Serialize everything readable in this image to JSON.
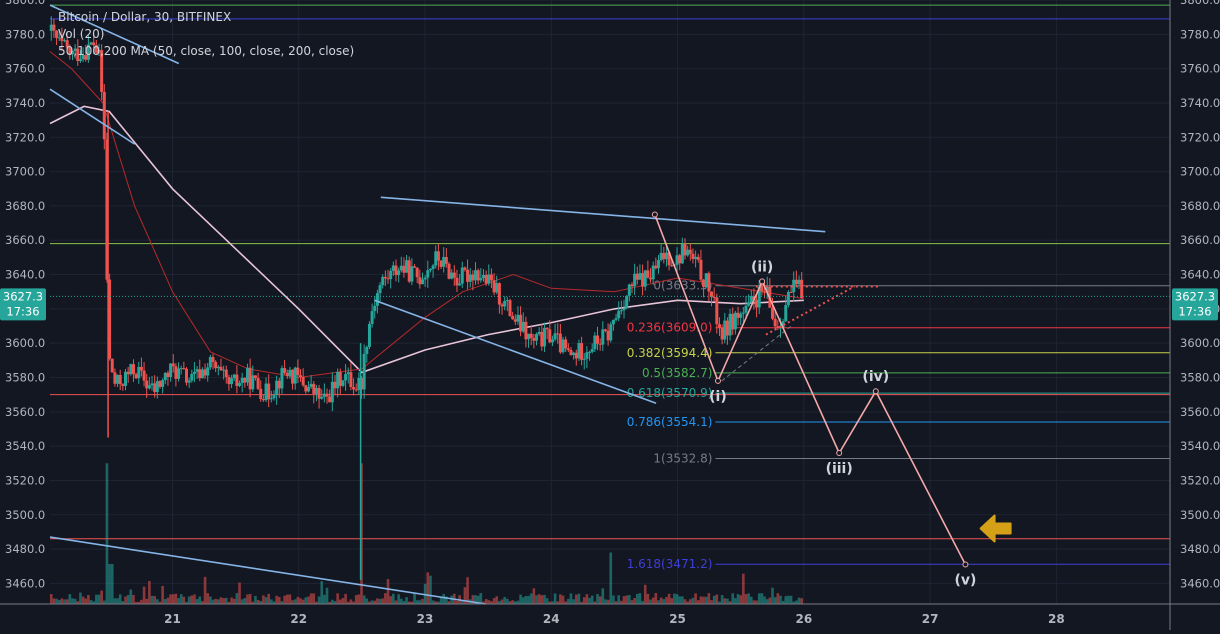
{
  "legend": {
    "title": "Bitcoin / Dollar, 30, BITFINEX",
    "volume": "Vol (20)",
    "ma": "50,100,200 MA (50, close, 100, close, 200, close)"
  },
  "chart_data": {
    "type": "candlestick",
    "symbol": "Bitcoin / Dollar",
    "interval": "30",
    "exchange": "BITFINEX",
    "x_ticks": [
      "21",
      "22",
      "23",
      "24",
      "25",
      "26",
      "27",
      "28"
    ],
    "y_ticks": [
      3460.0,
      3480.0,
      3500.0,
      3520.0,
      3540.0,
      3560.0,
      3580.0,
      3600.0,
      3620.0,
      3640.0,
      3660.0,
      3680.0,
      3700.0,
      3720.0,
      3740.0,
      3760.0,
      3780.0,
      3800.0
    ],
    "ylim": [
      3448,
      3800
    ],
    "xlim": [
      20.03,
      28.9
    ],
    "last_price": "3627.3",
    "countdown": "17:36",
    "colors": {
      "background": "#131722",
      "up": "#26a69a",
      "down": "#ef5350",
      "trendline": "#85b4e6",
      "wave": "#f4a8a8",
      "ma_slow": "#e8c4d8",
      "ma_mid": "#b72a2a",
      "last_price": "#26a69a"
    },
    "price_path": [
      [
        20.03,
        3782
      ],
      [
        20.1,
        3775
      ],
      [
        20.2,
        3768
      ],
      [
        20.3,
        3770
      ],
      [
        20.38,
        3775
      ],
      [
        20.42,
        3765
      ],
      [
        20.45,
        3735
      ],
      [
        20.46,
        3718
      ],
      [
        20.48,
        3640
      ],
      [
        20.5,
        3590
      ],
      [
        20.55,
        3575
      ],
      [
        20.7,
        3585
      ],
      [
        20.85,
        3572
      ],
      [
        21.0,
        3585
      ],
      [
        21.15,
        3578
      ],
      [
        21.3,
        3588
      ],
      [
        21.45,
        3575
      ],
      [
        21.6,
        3580
      ],
      [
        21.75,
        3570
      ],
      [
        21.9,
        3584
      ],
      [
        22.05,
        3576
      ],
      [
        22.2,
        3566
      ],
      [
        22.35,
        3582
      ],
      [
        22.45,
        3575
      ],
      [
        22.5,
        3578
      ],
      [
        22.53,
        3600
      ],
      [
        22.58,
        3620
      ],
      [
        22.65,
        3635
      ],
      [
        22.8,
        3645
      ],
      [
        22.95,
        3638
      ],
      [
        23.1,
        3650
      ],
      [
        23.25,
        3637
      ],
      [
        23.4,
        3642
      ],
      [
        23.55,
        3632
      ],
      [
        23.7,
        3615
      ],
      [
        23.85,
        3600
      ],
      [
        24.0,
        3605
      ],
      [
        24.15,
        3592
      ],
      [
        24.3,
        3598
      ],
      [
        24.45,
        3605
      ],
      [
        24.55,
        3622
      ],
      [
        24.65,
        3635
      ],
      [
        24.8,
        3640
      ],
      [
        24.9,
        3652
      ],
      [
        25.0,
        3648
      ],
      [
        25.05,
        3656
      ],
      [
        25.15,
        3645
      ],
      [
        25.25,
        3632
      ],
      [
        25.3,
        3618
      ],
      [
        25.35,
        3605
      ],
      [
        25.45,
        3615
      ],
      [
        25.55,
        3618
      ],
      [
        25.6,
        3625
      ],
      [
        25.7,
        3630
      ],
      [
        25.75,
        3615
      ],
      [
        25.8,
        3610
      ],
      [
        25.85,
        3622
      ],
      [
        25.9,
        3630
      ],
      [
        25.95,
        3633
      ],
      [
        26.0,
        3627
      ]
    ],
    "volume_spikes": [
      [
        20.48,
        3530
      ],
      [
        22.5,
        3530
      ],
      [
        24.47,
        3478
      ]
    ],
    "moving_averages": [
      {
        "points": [
          [
            20.03,
            3728
          ],
          [
            20.3,
            3738
          ],
          [
            20.5,
            3735
          ],
          [
            21.0,
            3690
          ],
          [
            21.5,
            3655
          ],
          [
            22.0,
            3620
          ],
          [
            22.5,
            3583
          ],
          [
            23.0,
            3596
          ],
          [
            23.5,
            3605
          ],
          [
            24.0,
            3612
          ],
          [
            24.5,
            3620
          ],
          [
            25.0,
            3625
          ],
          [
            25.5,
            3623
          ],
          [
            26.0,
            3625
          ]
        ]
      },
      {
        "points": [
          [
            20.03,
            3770
          ],
          [
            20.2,
            3760
          ],
          [
            20.45,
            3740
          ],
          [
            20.7,
            3680
          ],
          [
            21.0,
            3630
          ],
          [
            21.3,
            3595
          ],
          [
            21.6,
            3585
          ],
          [
            22.0,
            3580
          ],
          [
            22.5,
            3585
          ],
          [
            23.0,
            3615
          ],
          [
            23.3,
            3630
          ],
          [
            23.7,
            3640
          ],
          [
            24.0,
            3632
          ],
          [
            24.5,
            3630
          ],
          [
            25.0,
            3638
          ],
          [
            25.5,
            3632
          ],
          [
            26.0,
            3626
          ]
        ]
      }
    ],
    "horizontal_levels": [
      {
        "price": 3797,
        "color": "#4caf50"
      },
      {
        "price": 3789,
        "color": "#3f3fd8"
      },
      {
        "price": 3658,
        "color": "#8bc34a"
      },
      {
        "price": 3570,
        "color": "#ef5350"
      },
      {
        "price": 3486,
        "color": "#ef5350"
      }
    ],
    "fibonacci": [
      {
        "label": "0(3633.5)",
        "price": 3633.5,
        "color": "#787b86"
      },
      {
        "label": "0.236(3609.0)",
        "price": 3609.0,
        "color": "#f23645"
      },
      {
        "label": "0.382(3594.4)",
        "price": 3594.4,
        "color": "#c6d34a"
      },
      {
        "label": "0.5(3582.7)",
        "price": 3582.7,
        "color": "#4caf50"
      },
      {
        "label": "0.618(3570.9)",
        "price": 3570.9,
        "color": "#26a69a"
      },
      {
        "label": "0.786(3554.1)",
        "price": 3554.1,
        "color": "#2196f3"
      },
      {
        "label": "1(3532.8)",
        "price": 3532.8,
        "color": "#787b86"
      },
      {
        "label": "1.618(3471.2)",
        "price": 3471.2,
        "color": "#3f3fd8"
      }
    ],
    "fib_span": [
      25.3,
      27.9
    ],
    "trendlines": [
      {
        "from": [
          20.03,
          3797
        ],
        "to": [
          21.05,
          3763
        ]
      },
      {
        "from": [
          20.03,
          3748
        ],
        "to": [
          20.7,
          3716
        ]
      },
      {
        "from": [
          22.65,
          3685
        ],
        "to": [
          26.17,
          3665
        ]
      },
      {
        "from": [
          22.6,
          3625
        ],
        "to": [
          24.83,
          3565
        ]
      },
      {
        "from": [
          20.03,
          3487
        ],
        "to": [
          23.48,
          3448
        ]
      }
    ],
    "triangle_lines": [
      {
        "from": [
          25.62,
          3633
        ],
        "to": [
          26.6,
          3633
        ],
        "style": "red-dotted"
      },
      {
        "from": [
          25.7,
          3605
        ],
        "to": [
          26.4,
          3633
        ],
        "style": "red-dotted"
      },
      {
        "from": [
          25.35,
          3578
        ],
        "to": [
          25.9,
          3610
        ],
        "style": "gray-dashed"
      }
    ],
    "wave_path": [
      [
        24.82,
        3675
      ],
      [
        25.32,
        3578
      ],
      [
        25.67,
        3636
      ],
      [
        26.28,
        3536
      ],
      [
        26.57,
        3572
      ],
      [
        27.28,
        3471
      ]
    ],
    "wave_labels": [
      {
        "label": "(i)",
        "x": 25.32,
        "y": 3578,
        "position": "below"
      },
      {
        "label": "(ii)",
        "x": 25.67,
        "y": 3636,
        "position": "above"
      },
      {
        "label": "(iii)",
        "x": 26.28,
        "y": 3536,
        "position": "below"
      },
      {
        "label": "(iv)",
        "x": 26.57,
        "y": 3572,
        "position": "above"
      },
      {
        "label": "(v)",
        "x": 27.28,
        "y": 3471,
        "position": "below"
      }
    ],
    "arrow": {
      "x": 27.4,
      "y": 3492,
      "color": "#d4a017",
      "direction": "left"
    }
  }
}
